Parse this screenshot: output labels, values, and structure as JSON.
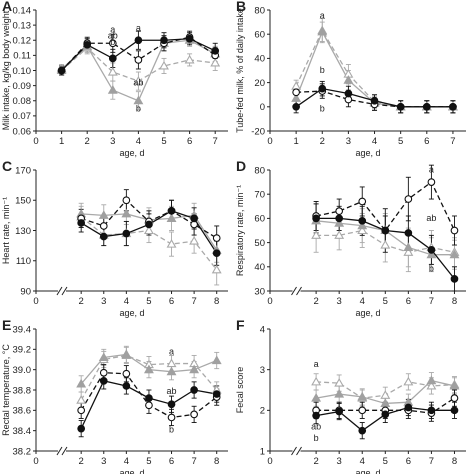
{
  "chart_data": [
    {
      "panel": "A",
      "type": "line",
      "ylabel": "Milk intake, kg/kg body weight",
      "xlabel": "age, d",
      "xlim": [
        0,
        7.5
      ],
      "ylim": [
        0.06,
        0.14
      ],
      "xticks": [
        "0",
        "1",
        "2",
        "3",
        "4",
        "5",
        "6",
        "7"
      ],
      "xtick_values": [
        0,
        1,
        2,
        3,
        4,
        5,
        6,
        7
      ],
      "yticks": [
        "0.06",
        "0.07",
        "0.08",
        "0.09",
        "0.10",
        "0.11",
        "0.12",
        "0.13",
        "0.14"
      ],
      "ytick_values": [
        0.06,
        0.07,
        0.08,
        0.09,
        0.1,
        0.11,
        0.12,
        0.13,
        0.14
      ],
      "axis_break": false,
      "x": [
        1,
        2,
        3,
        4,
        5,
        6,
        7
      ],
      "series": [
        {
          "style": "filled-black-circle",
          "values": [
            0.1,
            0.117,
            0.108,
            0.12,
            0.12,
            0.121,
            0.113
          ],
          "err": [
            0.003,
            0.004,
            0.006,
            0.006,
            0.005,
            0.004,
            0.005
          ]
        },
        {
          "style": "open-circle",
          "values": [
            0.1,
            0.118,
            0.118,
            0.107,
            0.118,
            0.122,
            0.11
          ],
          "err": [
            0.003,
            0.004,
            0.006,
            0.006,
            0.005,
            0.004,
            0.005
          ]
        },
        {
          "style": "filled-gray-triangle",
          "values": [
            0.101,
            0.116,
            0.087,
            0.08,
            0.118,
            0.12,
            0.111
          ],
          "err": [
            0.003,
            0.004,
            0.006,
            0.006,
            0.005,
            0.004,
            0.005
          ]
        },
        {
          "style": "open-gray-triangle",
          "values": [
            0.1,
            0.115,
            0.099,
            0.093,
            0.103,
            0.107,
            0.105
          ],
          "err": [
            0.003,
            0.004,
            0.006,
            0.006,
            0.005,
            0.004,
            0.005
          ]
        }
      ],
      "annotations": [
        {
          "text": "a",
          "x": 3,
          "y": 0.125
        },
        {
          "text": "ab",
          "x": 3,
          "y": 0.121
        },
        {
          "text": "b",
          "x": 3,
          "y": 0.117
        },
        {
          "text": "a",
          "x": 4,
          "y": 0.126
        },
        {
          "text": "ab",
          "x": 4,
          "y": 0.09
        },
        {
          "text": "b",
          "x": 4,
          "y": 0.073
        }
      ]
    },
    {
      "panel": "B",
      "type": "line",
      "ylabel": "Tube-fed milk, % of daily intake",
      "xlabel": "age, d",
      "xlim": [
        0,
        7.5
      ],
      "ylim": [
        -20,
        80
      ],
      "xticks": [
        "0",
        "1",
        "2",
        "3",
        "4",
        "5",
        "6",
        "7"
      ],
      "xtick_values": [
        0,
        1,
        2,
        3,
        4,
        5,
        6,
        7
      ],
      "yticks": [
        "-20",
        "0",
        "20",
        "40",
        "60",
        "80"
      ],
      "ytick_values": [
        -20,
        0,
        20,
        40,
        60,
        80
      ],
      "axis_break": false,
      "x": [
        1,
        2,
        3,
        4,
        5,
        6,
        7
      ],
      "series": [
        {
          "style": "filled-black-circle",
          "values": [
            0,
            15,
            11,
            5,
            0,
            0,
            0
          ],
          "err": [
            5,
            6,
            6,
            5,
            5,
            5,
            5
          ]
        },
        {
          "style": "open-circle",
          "values": [
            12,
            13,
            6,
            2,
            0,
            0,
            0
          ],
          "err": [
            5,
            6,
            6,
            5,
            5,
            5,
            5
          ]
        },
        {
          "style": "filled-gray-triangle",
          "values": [
            7,
            62,
            22,
            3,
            0,
            0,
            0
          ],
          "err": [
            5,
            8,
            8,
            5,
            5,
            5,
            5
          ]
        },
        {
          "style": "open-gray-triangle",
          "values": [
            17,
            63,
            27,
            4,
            0,
            0,
            0
          ],
          "err": [
            5,
            10,
            8,
            5,
            5,
            5,
            5
          ]
        }
      ],
      "annotations": [
        {
          "text": "a",
          "x": 2,
          "y": 73
        },
        {
          "text": "b",
          "x": 2,
          "y": 28
        },
        {
          "text": "b",
          "x": 2,
          "y": -4
        }
      ]
    },
    {
      "panel": "C",
      "type": "line",
      "ylabel": "Heart rate, min⁻¹",
      "xlabel": "age, d",
      "xlim": [
        0,
        8.5
      ],
      "ylim": [
        90,
        170
      ],
      "xticks": [
        "0",
        "2",
        "3",
        "4",
        "5",
        "6",
        "7",
        "8"
      ],
      "xtick_values": [
        0,
        2,
        3,
        4,
        5,
        6,
        7,
        8
      ],
      "yticks": [
        "90",
        "110",
        "130",
        "150",
        "170"
      ],
      "ytick_values": [
        90,
        110,
        130,
        150,
        170
      ],
      "axis_break": true,
      "x": [
        2,
        3,
        4,
        5,
        6,
        7,
        8
      ],
      "series": [
        {
          "style": "filled-black-circle",
          "values": [
            135,
            126,
            128,
            134,
            143,
            138,
            115
          ],
          "err": [
            6,
            6,
            8,
            7,
            7,
            7,
            8
          ]
        },
        {
          "style": "open-circle",
          "values": [
            138,
            133,
            150,
            136,
            143,
            134,
            125
          ],
          "err": [
            6,
            6,
            7,
            7,
            7,
            7,
            8
          ]
        },
        {
          "style": "filled-gray-triangle",
          "values": [
            141,
            140,
            141,
            137,
            138,
            140,
            117
          ],
          "err": [
            7,
            7,
            7,
            8,
            8,
            8,
            8
          ]
        },
        {
          "style": "open-gray-triangle",
          "values": [
            139,
            127,
            128,
            130,
            121,
            123,
            104
          ],
          "err": [
            7,
            7,
            8,
            8,
            8,
            8,
            10
          ]
        }
      ],
      "annotations": []
    },
    {
      "panel": "D",
      "type": "line",
      "ylabel": "Respiratory rate, min⁻¹",
      "xlabel": "age, d",
      "xlim": [
        0,
        8.5
      ],
      "ylim": [
        30,
        80
      ],
      "xticks": [
        "0",
        "2",
        "3",
        "4",
        "5",
        "6",
        "7",
        "8"
      ],
      "xtick_values": [
        0,
        2,
        3,
        4,
        5,
        6,
        7,
        8
      ],
      "yticks": [
        "30",
        "40",
        "50",
        "60",
        "70",
        "80"
      ],
      "ytick_values": [
        30,
        40,
        50,
        60,
        70,
        80
      ],
      "axis_break": true,
      "x": [
        2,
        3,
        4,
        5,
        6,
        7,
        8
      ],
      "series": [
        {
          "style": "filled-black-circle",
          "values": [
            60,
            60,
            59,
            55,
            54,
            47,
            35
          ],
          "err": [
            6,
            5,
            6,
            6,
            7,
            6,
            5
          ]
        },
        {
          "style": "open-circle",
          "values": [
            61,
            63,
            67,
            55,
            68,
            75,
            55
          ],
          "err": [
            6,
            5,
            6,
            9,
            9,
            7,
            6
          ]
        },
        {
          "style": "filled-gray-triangle",
          "values": [
            59,
            58,
            57,
            55,
            48,
            45,
            45
          ],
          "err": [
            7,
            6,
            7,
            7,
            8,
            7,
            6
          ]
        },
        {
          "style": "open-gray-triangle",
          "values": [
            53,
            53,
            55,
            49,
            46,
            48,
            46
          ],
          "err": [
            7,
            6,
            7,
            7,
            8,
            7,
            6
          ]
        }
      ],
      "annotations": [
        {
          "text": "a",
          "x": 7,
          "y": 79
        },
        {
          "text": "ab",
          "x": 7,
          "y": 59
        },
        {
          "text": "b",
          "x": 7,
          "y": 38
        }
      ]
    },
    {
      "panel": "E",
      "type": "line",
      "ylabel": "Rectal temperature, °C",
      "xlabel": "age, d",
      "xlim": [
        0,
        8.5
      ],
      "ylim": [
        38.2,
        39.4
      ],
      "xticks": [
        "0",
        "2",
        "3",
        "4",
        "5",
        "6",
        "7",
        "8"
      ],
      "xtick_values": [
        0,
        2,
        3,
        4,
        5,
        6,
        7,
        8
      ],
      "yticks": [
        "38.2",
        "38.4",
        "38.6",
        "38.8",
        "39.0",
        "39.2",
        "39.4"
      ],
      "ytick_values": [
        38.2,
        38.4,
        38.6,
        38.8,
        39.0,
        39.2,
        39.4
      ],
      "axis_break": true,
      "x": [
        2,
        3,
        4,
        5,
        6,
        7,
        8
      ],
      "series": [
        {
          "style": "filled-black-circle",
          "values": [
            38.42,
            38.89,
            38.84,
            38.72,
            38.66,
            38.8,
            38.76
          ],
          "err": [
            0.08,
            0.08,
            0.08,
            0.08,
            0.08,
            0.08,
            0.08
          ]
        },
        {
          "style": "open-circle",
          "values": [
            38.6,
            38.97,
            38.96,
            38.65,
            38.53,
            38.56,
            38.73
          ],
          "err": [
            0.08,
            0.08,
            0.08,
            0.08,
            0.08,
            0.08,
            0.08
          ]
        },
        {
          "style": "filled-gray-triangle",
          "values": [
            38.86,
            39.12,
            39.15,
            39.0,
            38.98,
            39.0,
            39.09
          ],
          "err": [
            0.08,
            0.08,
            0.08,
            0.08,
            0.08,
            0.08,
            0.08
          ]
        },
        {
          "style": "open-gray-triangle",
          "values": [
            38.7,
            39.1,
            39.14,
            39.05,
            39.06,
            39.06,
            38.8
          ],
          "err": [
            0.08,
            0.08,
            0.08,
            0.08,
            0.08,
            0.08,
            0.08
          ]
        }
      ],
      "annotations": [
        {
          "text": "a",
          "x": 6,
          "y": 39.15
        },
        {
          "text": "ab",
          "x": 6,
          "y": 38.76
        },
        {
          "text": "b",
          "x": 6,
          "y": 38.38
        }
      ]
    },
    {
      "panel": "F",
      "type": "line",
      "ylabel": "Fecal score",
      "xlabel": "age, d",
      "xlim": [
        0,
        8.5
      ],
      "ylim": [
        1,
        4
      ],
      "xticks": [
        "0",
        "2",
        "3",
        "4",
        "5",
        "6",
        "7",
        "8"
      ],
      "xtick_values": [
        0,
        2,
        3,
        4,
        5,
        6,
        7,
        8
      ],
      "yticks": [
        "1",
        "2",
        "3",
        "4"
      ],
      "ytick_values": [
        1,
        2,
        3,
        4
      ],
      "axis_break": true,
      "x": [
        2,
        3,
        4,
        5,
        6,
        7,
        8
      ],
      "series": [
        {
          "style": "filled-black-circle",
          "values": [
            1.87,
            1.97,
            1.5,
            1.9,
            2.07,
            2.0,
            2.0
          ],
          "err": [
            0.2,
            0.2,
            0.2,
            0.2,
            0.2,
            0.2,
            0.2
          ]
        },
        {
          "style": "open-circle",
          "values": [
            2.0,
            2.0,
            2.0,
            2.0,
            2.0,
            1.93,
            2.3
          ],
          "err": [
            0.2,
            0.2,
            0.2,
            0.2,
            0.2,
            0.2,
            0.2
          ]
        },
        {
          "style": "filled-gray-triangle",
          "values": [
            2.3,
            2.4,
            2.33,
            2.17,
            2.2,
            2.73,
            2.6
          ],
          "err": [
            0.2,
            0.2,
            0.2,
            0.2,
            0.2,
            0.2,
            0.2
          ]
        },
        {
          "style": "open-gray-triangle",
          "values": [
            2.7,
            2.67,
            2.3,
            2.37,
            2.7,
            2.6,
            2.63
          ],
          "err": [
            0.2,
            0.2,
            0.2,
            0.2,
            0.2,
            0.2,
            0.2
          ]
        }
      ],
      "annotations": [
        {
          "text": "a",
          "x": 2,
          "y": 3.07
        },
        {
          "text": "ab",
          "x": 2,
          "y": 1.53
        },
        {
          "text": "b",
          "x": 2,
          "y": 1.25
        }
      ]
    }
  ],
  "colors": {
    "black": "#111111",
    "gray_line": "#a9a9a9",
    "gray_fill": "#a0a0a0",
    "open_fill": "#ffffff",
    "axis": "#222222"
  }
}
